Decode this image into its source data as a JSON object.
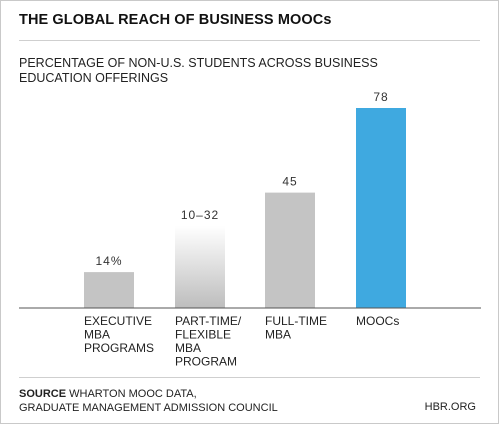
{
  "header": {
    "title": "THE GLOBAL REACH OF BUSINESS MOOCs",
    "subtitle_line1": "PERCENTAGE OF NON-U.S. STUDENTS ACROSS BUSINESS",
    "subtitle_line2": "EDUCATION OFFERINGS"
  },
  "footer": {
    "source_label": "SOURCE",
    "source_line1": "WHARTON MOOC DATA,",
    "source_line2": "GRADUATE MANAGEMENT ADMISSION COUNCIL",
    "credit": "HBR.ORG"
  },
  "colors": {
    "gray_bar": "#c4c4c4",
    "highlight_bar": "#3fa9e0",
    "gradient_top": "#ffffff",
    "gradient_bottom": "#bdbdbd",
    "axis": "#555555"
  },
  "chart_data": {
    "type": "bar",
    "title": "THE GLOBAL REACH OF BUSINESS MOOCs",
    "subtitle": "PERCENTAGE OF NON-U.S. STUDENTS ACROSS BUSINESS EDUCATION OFFERINGS",
    "categories": [
      [
        "EXECUTIVE",
        "MBA",
        "PROGRAMS"
      ],
      [
        "PART-TIME/",
        "FLEXIBLE",
        "MBA",
        "PROGRAM"
      ],
      [
        "FULL-TIME",
        "MBA"
      ],
      [
        "MOOCs"
      ]
    ],
    "values": [
      14,
      32,
      45,
      78
    ],
    "range_low": [
      null,
      10,
      null,
      null
    ],
    "value_labels": [
      "14%",
      "10–32",
      "45",
      "78"
    ],
    "bar_styles": [
      "solid",
      "gradient",
      "solid",
      "highlight"
    ],
    "ylim": [
      0,
      78
    ],
    "grid": false,
    "legend": "none",
    "xlabel": "",
    "ylabel": ""
  }
}
